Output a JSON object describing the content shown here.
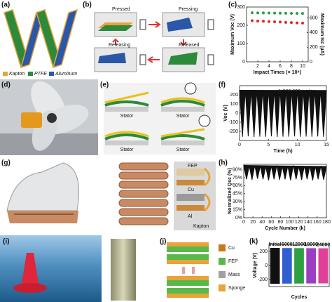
{
  "panels": {
    "a": {
      "label": "(a)",
      "legend": [
        "Kapton",
        "PTFE",
        "Aluminum"
      ]
    },
    "b": {
      "label": "(b)",
      "states": [
        "Pressed",
        "Pressing",
        "Releasing",
        "Released"
      ]
    },
    "c": {
      "label": "(c)"
    },
    "d": {
      "label": "(d)"
    },
    "e": {
      "label": "(e)",
      "stator": [
        "Stator",
        "Stator",
        "Stator",
        "Stator"
      ]
    },
    "f": {
      "label": "(f)"
    },
    "g": {
      "label": "(g)",
      "layers": [
        "FEP",
        "Cu",
        "Al",
        "Kapton"
      ]
    },
    "h": {
      "label": "(h)"
    },
    "i": {
      "label": "(i)"
    },
    "j": {
      "label": "(j)",
      "legend": [
        "Cu",
        "FEP",
        "Mass",
        "Sponge"
      ]
    },
    "k": {
      "label": "(k)"
    }
  },
  "chart_data": [
    {
      "type": "scatter",
      "xlabel": "Impact Times (× 10⁴)",
      "ylabel": "Maximum Voc (V)",
      "y2label": "Maximum Isc (μA)",
      "x": [
        1,
        2,
        3,
        4,
        5,
        6,
        7,
        8,
        9,
        10
      ],
      "series": [
        {
          "color": "#e0262b",
          "values": [
            225,
            223,
            222,
            220,
            219,
            218,
            216,
            215,
            213,
            212
          ]
        },
        {
          "color": "#2a9d4a",
          "axis": "y2",
          "values": [
            672,
            670,
            669,
            668,
            667,
            666,
            665,
            664,
            663,
            662
          ]
        }
      ],
      "xlim": [
        0,
        11
      ],
      "xticks": [
        2,
        4,
        6,
        8,
        10
      ],
      "ylim": [
        0,
        300
      ],
      "yticks": [
        0,
        100,
        200,
        300
      ],
      "y2lim": [
        0,
        750
      ],
      "y2ticks": [
        0,
        200,
        400,
        600
      ]
    },
    {
      "type": "line",
      "xlabel": "Time (h)",
      "ylabel": "Voc (V)",
      "annotation": "1,080,000 cycles",
      "color": "#111111",
      "x": [
        0,
        0.5,
        1,
        1.5,
        2,
        2.5,
        3,
        3.5,
        4,
        4.5,
        5,
        5.5,
        6,
        6.5,
        7,
        7.5,
        8,
        8.5,
        9,
        9.5,
        10,
        10.5,
        11,
        11.5,
        12,
        12.5,
        13,
        13.5,
        14,
        14.5,
        15
      ],
      "values": [
        250,
        -260,
        245,
        -255,
        250,
        -262,
        248,
        -258,
        252,
        -260,
        247,
        -255,
        250,
        -261,
        248,
        -258,
        251,
        -259,
        246,
        -256,
        250,
        -260,
        248,
        -257,
        249,
        -259,
        247,
        -256,
        250,
        -260,
        248
      ],
      "xlim": [
        0,
        15
      ],
      "xticks": [
        0,
        5,
        10,
        15
      ],
      "ylim": [
        -300,
        300
      ],
      "yticks": [
        -200,
        -100,
        0,
        100,
        200
      ]
    },
    {
      "type": "line",
      "xlabel": "Cycle Number (k)",
      "ylabel": "Normalized Qsc (%)",
      "color": "#111111",
      "x": [
        0,
        6,
        12,
        18,
        24,
        30,
        36,
        42,
        48,
        54,
        60,
        66,
        72,
        78,
        84,
        90,
        96,
        102,
        108,
        114,
        120,
        126,
        132,
        138,
        144,
        150,
        156,
        162,
        168,
        174,
        180
      ],
      "values": [
        98,
        72,
        97,
        71,
        98,
        73,
        97,
        72,
        96,
        70,
        97,
        72,
        98,
        71,
        96,
        72,
        97,
        70,
        98,
        72,
        96,
        71,
        97,
        72,
        97,
        70,
        96,
        72,
        97,
        71,
        96
      ],
      "xlim": [
        0,
        180
      ],
      "xticks": [
        0,
        20,
        40,
        60,
        80,
        100,
        120,
        140,
        160,
        180
      ],
      "ylim": [
        0,
        100
      ],
      "yticks": [
        {
          "value": 0,
          "label": "0%"
        },
        {
          "value": 15,
          "label": "15%"
        },
        {
          "value": 30,
          "label": "30%"
        },
        {
          "value": 45,
          "label": "45%"
        },
        {
          "value": 60,
          "label": "60%"
        },
        {
          "value": 75,
          "label": "75%"
        },
        {
          "value": 90,
          "label": "90%"
        }
      ]
    },
    {
      "type": "bar",
      "xlabel": "Cycles",
      "ylabel": "Voltage (V)",
      "categories": [
        "Initial",
        "6000",
        "12000",
        "18000",
        "24000"
      ],
      "colors": [
        "#111111",
        "#2f5fd0",
        "#2ea043",
        "#9b3fc2",
        "#e0409a"
      ],
      "upper": [
        250,
        248,
        247,
        246,
        245
      ],
      "lower": [
        -260,
        -258,
        -257,
        -256,
        -255
      ],
      "ylim": [
        -300,
        300
      ],
      "yticks": [
        -200,
        0,
        200
      ]
    }
  ]
}
